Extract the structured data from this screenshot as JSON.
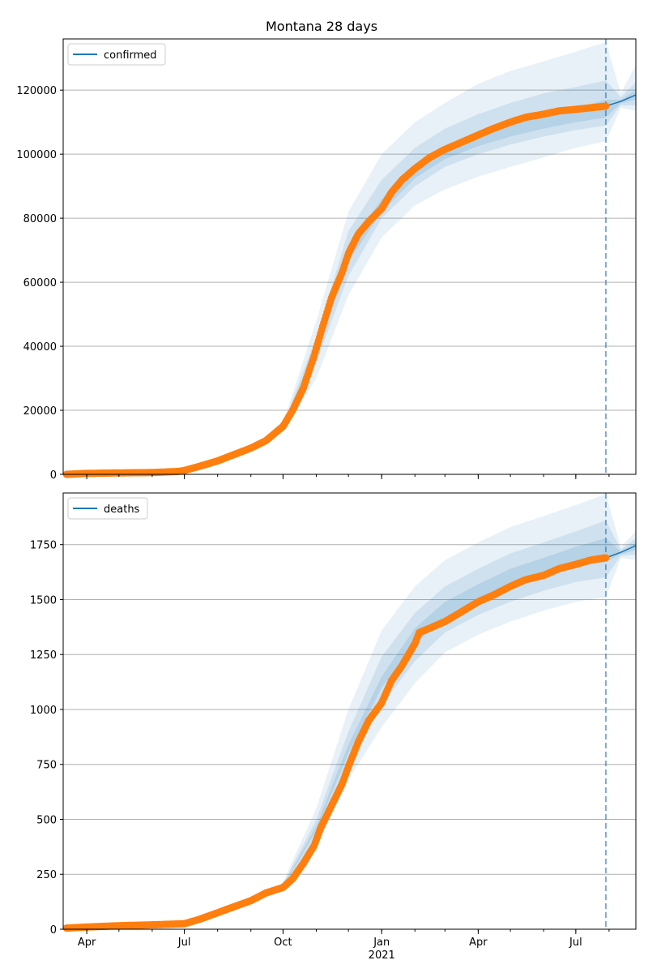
{
  "title": "Montana 28 days",
  "x_ticks": [
    {
      "label": "Apr",
      "date": "2020-04-01"
    },
    {
      "label": "Jul",
      "date": "2020-07-01"
    },
    {
      "label": "Oct",
      "date": "2020-10-01"
    },
    {
      "label": "Jan",
      "date": "2021-01-01"
    },
    {
      "label": "Apr",
      "date": "2021-04-01"
    },
    {
      "label": "Jul",
      "date": "2021-07-01"
    }
  ],
  "x_year_label": "2021",
  "colors": {
    "forecast": "#1f77b4",
    "observed": "#ff7f0e",
    "band": "#1f77b4",
    "grid": "#b0b0b0"
  },
  "chart_data": [
    {
      "type": "line",
      "legend": "confirmed",
      "legend_position": "top-left",
      "grid": "horizontal",
      "xlim": [
        "2020-03-10",
        "2021-08-26"
      ],
      "ylim": [
        0,
        136000
      ],
      "yticks": [
        0,
        20000,
        40000,
        60000,
        80000,
        100000,
        120000
      ],
      "cutoff_date": "2021-07-29",
      "observed": {
        "x": [
          "2020-03-13",
          "2020-04-01",
          "2020-05-01",
          "2020-06-01",
          "2020-06-25",
          "2020-07-01",
          "2020-07-15",
          "2020-08-01",
          "2020-08-15",
          "2020-09-01",
          "2020-09-15",
          "2020-10-01",
          "2020-10-10",
          "2020-10-20",
          "2020-10-30",
          "2020-11-05",
          "2020-11-15",
          "2020-11-25",
          "2020-12-01",
          "2020-12-10",
          "2020-12-20",
          "2021-01-01",
          "2021-01-10",
          "2021-01-20",
          "2021-02-01",
          "2021-02-15",
          "2021-03-01",
          "2021-03-15",
          "2021-04-01",
          "2021-04-15",
          "2021-05-01",
          "2021-05-15",
          "2021-06-01",
          "2021-06-15",
          "2021-07-01",
          "2021-07-15",
          "2021-07-29"
        ],
        "y": [
          0,
          300,
          450,
          560,
          900,
          1200,
          2500,
          4200,
          6000,
          8200,
          10500,
          15000,
          20000,
          27000,
          37000,
          44000,
          55000,
          63000,
          69000,
          75000,
          79000,
          83000,
          88000,
          92000,
          95500,
          99000,
          101500,
          103500,
          106000,
          108000,
          110000,
          111500,
          112500,
          113500,
          114000,
          114500,
          115000
        ]
      },
      "forecast": {
        "x": [
          "2021-07-29",
          "2021-08-12",
          "2021-08-26"
        ],
        "y": [
          115000,
          116500,
          118500
        ]
      },
      "bands": [
        {
          "x": [
            "2020-10-01",
            "2020-11-01",
            "2020-12-01",
            "2021-01-01",
            "2021-02-01",
            "2021-03-01",
            "2021-04-01",
            "2021-05-01",
            "2021-06-01",
            "2021-07-01",
            "2021-07-29",
            "2021-08-12",
            "2021-08-26"
          ],
          "upper": [
            16000,
            48000,
            82000,
            100000,
            110000,
            116000,
            122000,
            126000,
            129000,
            132000,
            135000,
            119000,
            128000
          ],
          "lower": [
            13000,
            30000,
            56000,
            74000,
            84000,
            89000,
            93000,
            96000,
            99000,
            102000,
            104000,
            114500,
            113500
          ]
        },
        {
          "x": [
            "2020-10-01",
            "2020-11-01",
            "2020-12-01",
            "2021-01-01",
            "2021-02-01",
            "2021-03-01",
            "2021-04-01",
            "2021-05-01",
            "2021-06-01",
            "2021-07-01",
            "2021-07-29",
            "2021-08-12",
            "2021-08-26"
          ],
          "upper": [
            15500,
            43000,
            76000,
            92000,
            102000,
            108000,
            112500,
            116000,
            119000,
            121000,
            123000,
            117800,
            122500
          ],
          "lower": [
            13500,
            35000,
            62000,
            80000,
            90000,
            96000,
            100000,
            103000,
            105500,
            107500,
            109000,
            115300,
            115200
          ]
        },
        {
          "x": [
            "2020-10-01",
            "2020-11-01",
            "2020-12-01",
            "2021-01-01",
            "2021-02-01",
            "2021-03-01",
            "2021-04-01",
            "2021-05-01",
            "2021-06-01",
            "2021-07-01",
            "2021-07-29",
            "2021-08-12",
            "2021-08-26"
          ],
          "upper": [
            15000,
            40500,
            71500,
            86000,
            96500,
            102500,
            107000,
            110000,
            112500,
            114500,
            117000,
            117000,
            120000
          ],
          "lower": [
            14000,
            37500,
            66500,
            82000,
            92500,
            98500,
            102500,
            105500,
            108000,
            110000,
            111500,
            116000,
            117000
          ]
        }
      ]
    },
    {
      "type": "line",
      "legend": "deaths",
      "legend_position": "top-left",
      "grid": "horizontal",
      "xlim": [
        "2020-03-10",
        "2021-08-26"
      ],
      "ylim": [
        0,
        1985
      ],
      "yticks": [
        0,
        250,
        500,
        750,
        1000,
        1250,
        1500,
        1750
      ],
      "cutoff_date": "2021-07-29",
      "observed": {
        "x": [
          "2020-03-13",
          "2020-04-01",
          "2020-05-01",
          "2020-06-01",
          "2020-07-01",
          "2020-07-15",
          "2020-08-01",
          "2020-08-15",
          "2020-09-01",
          "2020-09-15",
          "2020-10-01",
          "2020-10-10",
          "2020-10-20",
          "2020-10-30",
          "2020-11-05",
          "2020-11-15",
          "2020-11-25",
          "2020-12-01",
          "2020-12-10",
          "2020-12-20",
          "2021-01-01",
          "2021-01-10",
          "2021-01-20",
          "2021-02-01",
          "2021-02-05",
          "2021-02-15",
          "2021-03-01",
          "2021-03-15",
          "2021-04-01",
          "2021-04-15",
          "2021-05-01",
          "2021-05-15",
          "2021-06-01",
          "2021-06-15",
          "2021-07-01",
          "2021-07-15",
          "2021-07-29"
        ],
        "y": [
          5,
          10,
          16,
          20,
          25,
          45,
          75,
          100,
          130,
          165,
          190,
          230,
          300,
          380,
          460,
          560,
          660,
          740,
          850,
          950,
          1030,
          1130,
          1200,
          1300,
          1350,
          1370,
          1400,
          1440,
          1490,
          1520,
          1560,
          1590,
          1610,
          1640,
          1660,
          1680,
          1690
        ]
      },
      "forecast": {
        "x": [
          "2021-07-29",
          "2021-08-12",
          "2021-08-26"
        ],
        "y": [
          1690,
          1715,
          1745
        ]
      },
      "bands": [
        {
          "x": [
            "2020-10-01",
            "2020-11-01",
            "2020-12-01",
            "2021-01-01",
            "2021-02-01",
            "2021-03-01",
            "2021-04-01",
            "2021-05-01",
            "2021-06-01",
            "2021-07-01",
            "2021-07-29",
            "2021-08-12",
            "2021-08-26"
          ],
          "upper": [
            215,
            550,
            1000,
            1360,
            1560,
            1680,
            1760,
            1830,
            1880,
            1930,
            1980,
            1740,
            1810
          ],
          "lower": [
            175,
            370,
            680,
            920,
            1120,
            1260,
            1340,
            1400,
            1450,
            1490,
            1510,
            1690,
            1680
          ]
        },
        {
          "x": [
            "2020-10-01",
            "2020-11-01",
            "2020-12-01",
            "2021-01-01",
            "2021-02-01",
            "2021-03-01",
            "2021-04-01",
            "2021-05-01",
            "2021-06-01",
            "2021-07-01",
            "2021-07-29",
            "2021-08-12",
            "2021-08-26"
          ],
          "upper": [
            205,
            500,
            900,
            1240,
            1440,
            1560,
            1640,
            1710,
            1760,
            1810,
            1860,
            1728,
            1780
          ],
          "lower": [
            185,
            420,
            760,
            1020,
            1220,
            1350,
            1430,
            1490,
            1540,
            1580,
            1600,
            1700,
            1705
          ]
        },
        {
          "x": [
            "2020-10-01",
            "2020-11-01",
            "2020-12-01",
            "2021-01-01",
            "2021-02-01",
            "2021-03-01",
            "2021-04-01",
            "2021-05-01",
            "2021-06-01",
            "2021-07-01",
            "2021-07-29",
            "2021-08-12",
            "2021-08-26"
          ],
          "upper": [
            198,
            470,
            840,
            1150,
            1370,
            1490,
            1570,
            1640,
            1690,
            1740,
            1780,
            1720,
            1760
          ],
          "lower": [
            192,
            450,
            800,
            1100,
            1300,
            1410,
            1500,
            1560,
            1610,
            1650,
            1670,
            1708,
            1725
          ]
        }
      ]
    }
  ]
}
